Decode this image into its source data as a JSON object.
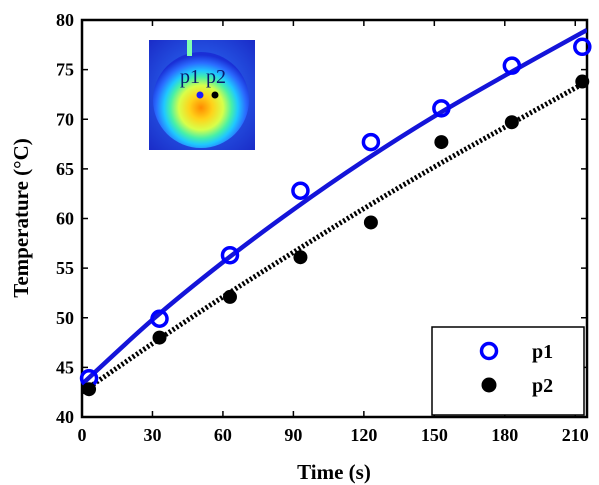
{
  "chart_data": {
    "type": "scatter",
    "xlabel": "Time (s)",
    "ylabel": "Temperature (°C)",
    "xlim": [
      0,
      215
    ],
    "ylim": [
      40,
      80
    ],
    "xticks": [
      0,
      30,
      60,
      90,
      120,
      150,
      180,
      210
    ],
    "yticks": [
      40,
      45,
      50,
      55,
      60,
      65,
      70,
      75,
      80
    ],
    "grid": false,
    "legend_position": "bottom-right",
    "series": [
      {
        "name": "p1",
        "marker": "open-circle",
        "color": "#0000ff",
        "x": [
          3,
          33,
          63,
          93,
          123,
          153,
          183,
          213
        ],
        "y": [
          43.9,
          49.9,
          56.3,
          62.8,
          67.7,
          71.1,
          75.4,
          77.3
        ],
        "fit": {
          "style": "solid",
          "color": "#1414d9",
          "x": [
            0,
            30,
            60,
            90,
            120,
            150,
            180,
            215
          ],
          "y": [
            43.3,
            49.8,
            55.6,
            60.9,
            65.8,
            70.3,
            74.4,
            79.0
          ]
        }
      },
      {
        "name": "p2",
        "marker": "filled-circle",
        "color": "#000000",
        "x": [
          3,
          33,
          63,
          93,
          123,
          153,
          183,
          213
        ],
        "y": [
          42.8,
          48.0,
          52.1,
          56.1,
          59.6,
          67.7,
          69.7,
          73.8
        ],
        "fit": {
          "style": "dotted",
          "color": "#000000",
          "x": [
            0,
            30,
            60,
            90,
            120,
            150,
            180,
            215
          ],
          "y": [
            42.5,
            47.4,
            52.1,
            56.6,
            61.0,
            65.2,
            69.2,
            73.8
          ]
        }
      }
    ],
    "inset": {
      "description": "thermal image",
      "labels": [
        "p1",
        "p2"
      ]
    }
  }
}
